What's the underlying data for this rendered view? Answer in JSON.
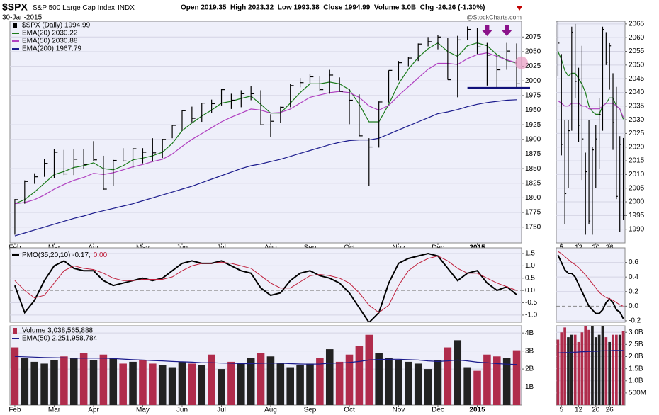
{
  "header": {
    "symbol": "$SPX",
    "name": "S&P 500 Large Cap Index",
    "exchange": "INDX",
    "date": "30-Jan-2015",
    "quote": "Open 2019.35  High 2023.32  Low 1993.38  Close 1994.99  Volume 3.0B  Chg -26.26 (-1.30%)",
    "watermark": "@StockCharts.com"
  },
  "chart_data": [
    {
      "type": "ohlc",
      "name": "$SPX (Daily) 1994.99",
      "color": "#000000",
      "categories": [
        "Feb",
        null,
        null,
        null,
        "Mar",
        null,
        null,
        null,
        "Apr",
        null,
        null,
        null,
        null,
        "May",
        null,
        null,
        null,
        "Jun",
        null,
        null,
        null,
        "Jul",
        null,
        null,
        null,
        null,
        "Aug",
        null,
        null,
        null,
        "Sep",
        null,
        null,
        null,
        "Oct",
        null,
        null,
        null,
        null,
        "Nov",
        null,
        null,
        null,
        "Dec",
        null,
        null,
        null,
        "2015",
        null,
        null,
        null,
        null
      ],
      "high": [
        1798,
        1830,
        1842,
        1867,
        1883,
        1882,
        1883,
        1884,
        1897,
        1872,
        1865,
        1885,
        1885,
        1885,
        1902,
        1901,
        1924,
        1950,
        1956,
        1962,
        1968,
        1986,
        1978,
        1984,
        1991,
        1984,
        1943,
        1956,
        1995,
        2005,
        2012,
        2008,
        2019,
        2006,
        1986,
        1977,
        1902,
        1965,
        2018,
        2034,
        2041,
        2064,
        2075,
        2079,
        2074,
        2077,
        2093,
        2091,
        2065,
        2045,
        2065,
        2064
      ],
      "low": [
        1737,
        1790,
        1824,
        1836,
        1834,
        1839,
        1839,
        1849,
        1863,
        1814,
        1820,
        1862,
        1851,
        1859,
        1862,
        1868,
        1902,
        1915,
        1929,
        1930,
        1945,
        1958,
        1952,
        1955,
        1967,
        1925,
        1904,
        1928,
        1955,
        1989,
        1995,
        1983,
        1978,
        1983,
        1926,
        1906,
        1821,
        1886,
        1963,
        2001,
        2025,
        2034,
        2059,
        2054,
        2002,
        1972,
        2070,
        2046,
        1992,
        1988,
        2019,
        1989
      ],
      "close": [
        1797,
        1828,
        1836,
        1859,
        1878,
        1841,
        1866,
        1857,
        1865,
        1815,
        1864,
        1863,
        1884,
        1878,
        1877,
        1900,
        1924,
        1949,
        1936,
        1962,
        1961,
        1985,
        1967,
        1978,
        1978,
        1925,
        1931,
        1955,
        1992,
        1997,
        2007,
        1985,
        2010,
        1982,
        1967,
        1906,
        1887,
        1964,
        2018,
        2031,
        2039,
        2063,
        2067,
        2075,
        2002,
        2070,
        2088,
        2058,
        2044,
        2019,
        2051,
        1994.99
      ],
      "series": [
        {
          "name": "EMA(20) 2030.22",
          "color": "#1a7a1a",
          "values": [
            1790,
            1797,
            1810,
            1825,
            1840,
            1845,
            1852,
            1855,
            1860,
            1850,
            1848,
            1855,
            1865,
            1868,
            1872,
            1878,
            1893,
            1915,
            1928,
            1940,
            1950,
            1962,
            1965,
            1970,
            1974,
            1960,
            1945,
            1945,
            1962,
            1980,
            1995,
            1995,
            1998,
            1995,
            1985,
            1960,
            1930,
            1930,
            1960,
            1995,
            2020,
            2040,
            2055,
            2065,
            2050,
            2042,
            2060,
            2065,
            2060,
            2045,
            2035,
            2030.22
          ]
        },
        {
          "name": "EMA(50) 2030.88",
          "color": "#b040c0",
          "values": [
            1790,
            1792,
            1797,
            1805,
            1815,
            1823,
            1830,
            1835,
            1842,
            1840,
            1843,
            1848,
            1853,
            1857,
            1862,
            1866,
            1875,
            1888,
            1900,
            1910,
            1920,
            1930,
            1938,
            1945,
            1952,
            1950,
            1945,
            1946,
            1952,
            1962,
            1972,
            1976,
            1980,
            1982,
            1980,
            1972,
            1957,
            1950,
            1958,
            1975,
            1990,
            2005,
            2020,
            2030,
            2030,
            2028,
            2038,
            2045,
            2048,
            2042,
            2036,
            2030.88
          ]
        },
        {
          "name": "EMA(200) 1967.79",
          "color": "#1a1a8c",
          "values": [
            1735,
            1740,
            1745,
            1750,
            1755,
            1760,
            1765,
            1769,
            1774,
            1778,
            1782,
            1786,
            1790,
            1795,
            1800,
            1805,
            1810,
            1815,
            1820,
            1826,
            1832,
            1838,
            1844,
            1850,
            1855,
            1858,
            1862,
            1866,
            1871,
            1876,
            1881,
            1886,
            1891,
            1895,
            1898,
            1899,
            1899,
            1902,
            1909,
            1916,
            1923,
            1930,
            1937,
            1944,
            1947,
            1951,
            1956,
            1960,
            1963,
            1965,
            1967,
            1967.79
          ]
        }
      ],
      "ylim": [
        1723,
        2102
      ],
      "yticks": [
        1750,
        1775,
        1800,
        1825,
        1850,
        1875,
        1900,
        1925,
        1950,
        1975,
        2000,
        2025,
        2050,
        2075
      ],
      "grid": true,
      "support_line": 1988,
      "support_start": 46,
      "support_color": "#10107a",
      "arrows": [
        48,
        50
      ],
      "arrow_color": "#8b138b",
      "highlight_color": "#e89ac0"
    },
    {
      "type": "ohlc",
      "color": "#000000",
      "categories": [
        null,
        "5",
        null,
        null,
        null,
        null,
        "12",
        null,
        null,
        null,
        null,
        "20",
        null,
        null,
        null,
        "26",
        null,
        null,
        null,
        null
      ],
      "high": [
        2072,
        2054,
        2030,
        2030,
        2064,
        2065,
        2049,
        2057,
        2018,
        2030,
        2020,
        2028,
        2038,
        2064,
        2062,
        2058,
        2047,
        2042,
        2024,
        2023.32
      ],
      "low": [
        2046,
        2017,
        1992,
        2005,
        2026,
        2038,
        2022,
        2008,
        1988,
        1992,
        1988,
        2005,
        2012,
        2026,
        2050,
        2041,
        2019,
        2001,
        1989,
        1993.38
      ],
      "close": [
        2058,
        2021,
        2003,
        2026,
        2062,
        2044,
        2028,
        2023,
        2011,
        1993,
        2019,
        2023,
        2032,
        2063,
        2051,
        2057,
        2029,
        2002,
        2021,
        1994.99
      ],
      "series": [
        {
          "color": "#1a7a1a",
          "values": [
            2055,
            2052,
            2048,
            2046,
            2047,
            2047,
            2045,
            2043,
            2040,
            2035,
            2033,
            2032,
            2032,
            2035,
            2036,
            2038,
            2038,
            2035,
            2034,
            2030.22
          ]
        },
        {
          "color": "#b040c0",
          "values": [
            2037,
            2036,
            2035,
            2035,
            2036,
            2036,
            2036,
            2035,
            2035,
            2034,
            2034,
            2034,
            2034,
            2035,
            2036,
            2036,
            2036,
            2035,
            2034,
            2030.88
          ]
        }
      ],
      "ylim": [
        1985,
        2066
      ],
      "yticks": [
        1990,
        1995,
        2000,
        2005,
        2010,
        2015,
        2020,
        2025,
        2030,
        2035,
        2040,
        2045,
        2050,
        2055,
        2060,
        2065
      ],
      "grid": true
    },
    {
      "type": "line",
      "series": [
        {
          "name": "PMO(35,20,10) -0.17,",
          "color": "#000000",
          "width": 2,
          "values": [
            0.2,
            -0.9,
            -0.4,
            0.4,
            1.0,
            1.2,
            0.9,
            0.8,
            0.8,
            0.4,
            0.2,
            0.3,
            0.4,
            0.5,
            0.4,
            0.5,
            0.8,
            1.1,
            1.2,
            1.1,
            1.1,
            1.2,
            1.0,
            0.8,
            0.7,
            0.1,
            -0.2,
            -0.1,
            0.4,
            0.7,
            0.8,
            0.6,
            0.5,
            0.3,
            -0.1,
            -0.7,
            -1.3,
            -0.9,
            0.3,
            1.1,
            1.3,
            1.4,
            1.5,
            1.4,
            0.9,
            0.4,
            0.7,
            0.8,
            0.3,
            0.0,
            0.15,
            -0.17
          ]
        },
        {
          "name": "0.00",
          "color": "#c0203c",
          "width": 1,
          "values": [
            0.4,
            0.0,
            -0.3,
            -0.2,
            0.3,
            0.8,
            1.0,
            0.9,
            0.85,
            0.7,
            0.5,
            0.4,
            0.4,
            0.45,
            0.45,
            0.45,
            0.55,
            0.8,
            1.0,
            1.1,
            1.1,
            1.15,
            1.1,
            1.0,
            0.9,
            0.6,
            0.3,
            0.1,
            0.1,
            0.35,
            0.6,
            0.65,
            0.6,
            0.5,
            0.3,
            -0.1,
            -0.6,
            -0.9,
            -0.6,
            0.2,
            0.8,
            1.1,
            1.3,
            1.4,
            1.2,
            0.9,
            0.7,
            0.7,
            0.5,
            0.3,
            0.15,
            0.0
          ]
        }
      ],
      "ylim": [
        -1.29,
        1.73
      ],
      "yticks": [
        1.5,
        {
          "value": 1,
          "label": "1.0"
        },
        0.5,
        {
          "value": 0,
          "label": "0.0"
        },
        -0.5,
        {
          "value": -1,
          "label": "-1.0"
        }
      ],
      "grid": true,
      "zero_line": true
    },
    {
      "type": "line",
      "series": [
        {
          "color": "#000000",
          "width": 2,
          "values": [
            0.7,
            0.6,
            0.5,
            0.45,
            0.45,
            0.4,
            0.3,
            0.2,
            0.1,
            0.0,
            -0.05,
            -0.1,
            -0.1,
            -0.05,
            0.05,
            0.1,
            0.05,
            -0.05,
            -0.08,
            -0.17
          ]
        },
        {
          "color": "#c0203c",
          "width": 1,
          "values": [
            0.75,
            0.72,
            0.68,
            0.64,
            0.6,
            0.57,
            0.53,
            0.48,
            0.43,
            0.37,
            0.31,
            0.25,
            0.19,
            0.15,
            0.12,
            0.1,
            0.08,
            0.05,
            0.02,
            0.0
          ]
        }
      ],
      "ylim": [
        -0.22,
        0.8
      ],
      "yticks": [
        0.6,
        0.4,
        0.2,
        {
          "value": 0,
          "label": "0.0"
        },
        -0.2
      ],
      "grid": true,
      "zero_line": true
    },
    {
      "type": "bar",
      "name": "Volume 3,038,565,888",
      "up_color": "#222222",
      "down_color": "#b02c4c",
      "values": [
        3.2,
        2.6,
        2.4,
        2.3,
        2.5,
        2.7,
        2.6,
        2.9,
        2.5,
        2.8,
        2.6,
        2.3,
        2.4,
        2.5,
        2.3,
        2.2,
        2.1,
        2.4,
        2.3,
        2.2,
        2.8,
        2.0,
        2.4,
        2.3,
        2.6,
        2.9,
        2.7,
        2.3,
        2.1,
        2.2,
        2.3,
        2.6,
        3.1,
        2.4,
        2.8,
        3.3,
        3.9,
        2.9,
        2.6,
        2.5,
        2.4,
        2.3,
        2.0,
        2.5,
        3.2,
        3.6,
        2.1,
        1.9,
        2.8,
        2.7,
        2.6,
        3.04
      ],
      "series": [
        {
          "name": "EMA(50) 2,251,958,784",
          "color": "#1a1a8c",
          "values": [
            2.7,
            2.68,
            2.66,
            2.64,
            2.63,
            2.62,
            2.6,
            2.6,
            2.6,
            2.6,
            2.58,
            2.55,
            2.52,
            2.5,
            2.47,
            2.45,
            2.42,
            2.4,
            2.38,
            2.35,
            2.35,
            2.33,
            2.32,
            2.3,
            2.3,
            2.32,
            2.33,
            2.32,
            2.3,
            2.28,
            2.27,
            2.28,
            2.32,
            2.33,
            2.36,
            2.42,
            2.5,
            2.53,
            2.54,
            2.54,
            2.52,
            2.5,
            2.45,
            2.42,
            2.45,
            2.5,
            2.45,
            2.38,
            2.35,
            2.3,
            2.27,
            2.25
          ]
        }
      ],
      "ylim": [
        0,
        4.4
      ],
      "yticks": [
        {
          "value": 4,
          "label": "4B"
        },
        {
          "value": 3,
          "label": "3B"
        },
        {
          "value": 2,
          "label": "2B"
        },
        {
          "value": 1,
          "label": "1B"
        }
      ],
      "grid": true
    },
    {
      "type": "bar",
      "up_color": "#222222",
      "down_color": "#b02c4c",
      "values": [
        2.7,
        3.0,
        3.2,
        2.8,
        2.9,
        2.9,
        2.6,
        3.0,
        3.3,
        3.1,
        3.4,
        2.8,
        2.9,
        3.4,
        2.8,
        2.6,
        2.9,
        2.9,
        2.9,
        3.04
      ],
      "series": [
        {
          "color": "#1a1a8c",
          "values": [
            2.15,
            2.16,
            2.16,
            2.17,
            2.18,
            2.18,
            2.19,
            2.2,
            2.2,
            2.21,
            2.22,
            2.22,
            2.23,
            2.24,
            2.24,
            2.24,
            2.25,
            2.25,
            2.25,
            2.25
          ]
        }
      ],
      "ylim": [
        0,
        3.27
      ],
      "yticks": [
        {
          "value": 3,
          "label": "3.0B"
        },
        {
          "value": 2.5,
          "label": "2.5B"
        },
        {
          "value": 2,
          "label": "2.0B"
        },
        {
          "value": 1.5,
          "label": "1.5B"
        },
        {
          "value": 1,
          "label": "1.0B"
        },
        {
          "value": 0.5,
          "label": "500M"
        }
      ],
      "grid": true
    }
  ]
}
